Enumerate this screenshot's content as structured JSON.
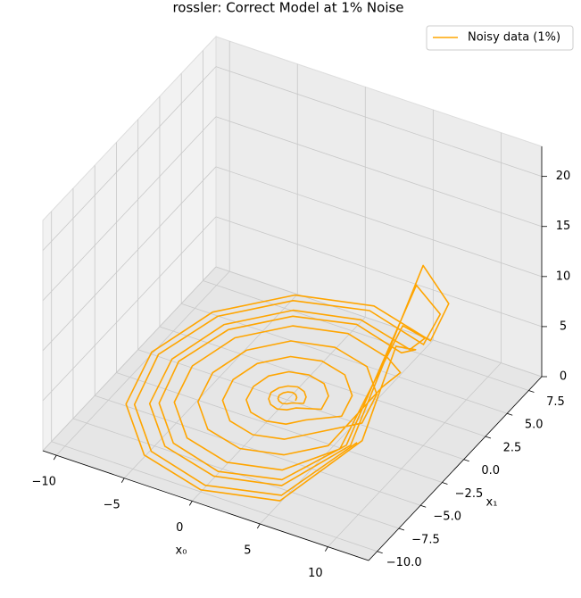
{
  "chart_data": {
    "type": "line3d",
    "title": "rossler: Correct Model at 1% Noise",
    "xlabel": "x₀",
    "ylabel": "x₁",
    "xlim": [
      -11,
      13
    ],
    "ylim": [
      -11,
      9
    ],
    "zlim": [
      0,
      23
    ],
    "xticks": [
      {
        "value": -10,
        "label": "−10"
      },
      {
        "value": -5,
        "label": "−5"
      },
      0,
      5,
      10
    ],
    "yticks": [
      {
        "value": -10,
        "label": "−10.0"
      },
      {
        "value": -7.5,
        "label": "−7.5"
      },
      {
        "value": -5,
        "label": "−5.0"
      },
      {
        "value": -2.5,
        "label": "−2.5"
      },
      {
        "value": 0,
        "label": "0.0"
      },
      2.5,
      {
        "value": 5,
        "label": "5.0"
      },
      7.5
    ],
    "zticks": [
      0,
      5,
      10,
      15,
      20
    ],
    "grid": true,
    "legend": "upper right",
    "series": [
      {
        "name": "Noisy data (1%)",
        "color": "#ffa500",
        "x": [
          0.6,
          0.5,
          0.3,
          0,
          -0.3,
          -0.5,
          -0.6,
          -0.5,
          -0.3,
          0,
          0.3,
          0.5,
          1.2,
          1.0,
          0.6,
          0,
          -0.6,
          -1.0,
          -1.2,
          -1.0,
          -0.6,
          0,
          0.6,
          1.0,
          2.5,
          2.2,
          1.3,
          0,
          -1.3,
          -2.2,
          -2.5,
          -2.2,
          -1.3,
          0,
          1.3,
          2.2,
          4,
          3.5,
          2,
          0,
          -2,
          -3.5,
          -4,
          -3.5,
          -2,
          0,
          2,
          3.5,
          5.5,
          4.8,
          2.8,
          0,
          -2.8,
          -4.8,
          -5.5,
          -4.8,
          -2.8,
          0,
          2.8,
          4.8,
          7,
          6.1,
          3.5,
          0,
          -3.5,
          -6.1,
          -7,
          -6.1,
          -3.5,
          0,
          3.5,
          6.1,
          8.5,
          7.4,
          4.3,
          0,
          -4.3,
          -7.4,
          -8.5,
          -7.4,
          -4.3,
          0,
          4.3,
          7.4,
          10,
          8.7,
          5,
          0,
          -5,
          -8.7,
          -10,
          -8.7,
          -5,
          0,
          5,
          8.7,
          8,
          6.9,
          4,
          0,
          -4,
          -6.9,
          -8,
          -6.9,
          -4,
          0,
          4,
          6.9,
          9.5,
          8.2,
          4.8,
          0,
          -4.8,
          -8.2,
          -9.5,
          -8.2,
          -4.8,
          0,
          4.8,
          8.2
        ],
        "y": [
          0,
          0.3,
          0.5,
          0.6,
          0.5,
          0.3,
          0,
          -0.3,
          -0.5,
          -0.6,
          -0.5,
          -0.3,
          0,
          0.6,
          1.0,
          1.2,
          1.0,
          0.6,
          0,
          -0.6,
          -1.0,
          -1.2,
          -1.0,
          -0.6,
          0,
          1.3,
          2.2,
          2.5,
          2.2,
          1.3,
          0,
          -1.3,
          -2.2,
          -2.5,
          -2.2,
          -1.3,
          0,
          2,
          3.5,
          4,
          3.5,
          2,
          0,
          -2,
          -3.5,
          -4,
          -3.5,
          -2,
          0,
          2.8,
          4.8,
          5.5,
          4.8,
          2.8,
          0,
          -2.8,
          -4.8,
          -5.5,
          -4.8,
          -2.8,
          0,
          3.5,
          6.1,
          7,
          6.1,
          3.5,
          0,
          -3.5,
          -6.1,
          -7,
          -6.1,
          -3.5,
          0,
          4.3,
          7.4,
          8.5,
          7.4,
          4.3,
          0,
          -4.3,
          -7.4,
          -8.5,
          -7.4,
          -4.3,
          0,
          5,
          8.7,
          10,
          8.7,
          5,
          0,
          -5,
          -8.7,
          -10,
          -8.7,
          -5,
          0,
          4,
          6.9,
          8,
          6.9,
          4,
          0,
          -4,
          -6.9,
          -8,
          -6.9,
          -4,
          0,
          4.8,
          8.2,
          9.5,
          8.2,
          4.8,
          0,
          -4.8,
          -8.2,
          -9.5,
          -8.2,
          -4.8
        ],
        "z": [
          0.2,
          0.2,
          0.2,
          0.2,
          0.2,
          0.2,
          0.2,
          0.2,
          0.2,
          0.2,
          0.2,
          0.2,
          0.2,
          0.2,
          0.2,
          0.2,
          0.2,
          0.2,
          0.2,
          0.2,
          0.2,
          0.2,
          0.2,
          0.2,
          0.2,
          0.2,
          0.2,
          0.2,
          0.2,
          0.2,
          0.2,
          0.2,
          0.2,
          0.2,
          0.2,
          0.2,
          0.2,
          0.2,
          0.2,
          0.2,
          0.2,
          0.2,
          0.2,
          0.2,
          0.2,
          0.2,
          0.2,
          0.2,
          0.2,
          0.2,
          0.2,
          0.2,
          0.2,
          0.2,
          0.2,
          0.2,
          0.2,
          0.2,
          0.2,
          0.2,
          4.5,
          2.3,
          0.2,
          0.2,
          0.2,
          0.2,
          0.2,
          0.2,
          0.2,
          0.2,
          0.2,
          1.1,
          11.3,
          5.6,
          0.2,
          0.2,
          0.2,
          0.2,
          0.2,
          0.2,
          0.2,
          0.2,
          0.2,
          2.8,
          18,
          9,
          0.2,
          0.2,
          0.2,
          0.2,
          0.2,
          0.2,
          0.2,
          0.2,
          0.2,
          4.5,
          9,
          4.5,
          0.2,
          0.2,
          0.2,
          0.2,
          0.2,
          0.2,
          0.2,
          0.2,
          0.2,
          2.3,
          15.8,
          7.9,
          0.2,
          0.2,
          0.2,
          0.2,
          0.2,
          0.2,
          0.2,
          0.2,
          0.2,
          3.9
        ]
      }
    ]
  }
}
